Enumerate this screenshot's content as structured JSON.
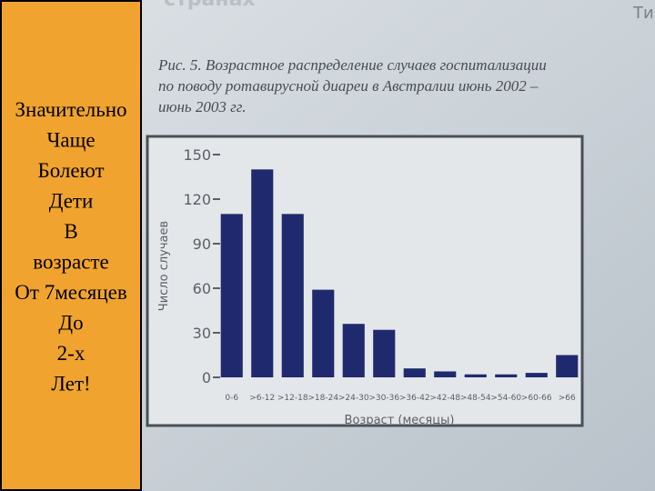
{
  "header": {
    "partial_title": "странах",
    "partial_right": "Ти"
  },
  "slide_text": [
    "Значительно",
    "Чаще",
    "Болеют",
    "Дети",
    "В",
    "возрасте",
    "От 7месяцев",
    "До",
    "2-х",
    "Лет!"
  ],
  "chart_data": {
    "type": "bar",
    "title": "Рис. 5. Возрастное распределение случаев госпитализации по поводу ротавирусной диареи в Австралии июнь 2002 – июнь 2003 гг.",
    "y_label": "Число случаев",
    "x_label": "Возраст (месяцы)",
    "categories": [
      "0-6",
      ">6-12",
      ">12-18",
      ">18-24",
      ">24-30",
      ">30-36",
      ">36-42",
      ">42-48",
      ">48-54",
      ">54-60",
      ">60-66",
      ">66"
    ],
    "values": [
      110,
      140,
      110,
      59,
      36,
      32,
      6,
      4,
      2,
      2,
      3,
      15
    ],
    "color": "#1f2a6e",
    "ylim": [
      0,
      150
    ],
    "yticks": [
      0,
      30,
      60,
      90,
      120,
      150
    ]
  }
}
